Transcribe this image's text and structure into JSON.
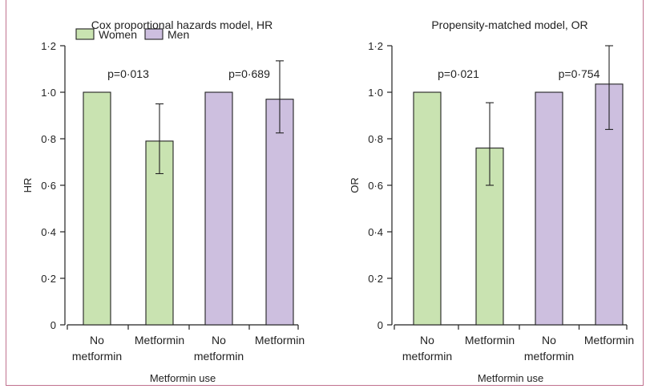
{
  "colors": {
    "women_fill": "#c9e3b1",
    "men_fill": "#cdbfdf",
    "frame": "#c0728f"
  },
  "chart_data": [
    {
      "type": "bar",
      "title": "Cox proportional hazards model, HR",
      "xlabel": "Metformin use",
      "ylabel": "HR",
      "ylim": [
        0,
        1.2
      ],
      "yticks": [
        "0",
        "0·2",
        "0·4",
        "0·6",
        "0·8",
        "1·0",
        "1·2"
      ],
      "categories": [
        {
          "lines": [
            "No",
            "metformin"
          ],
          "group": "Women"
        },
        {
          "lines": [
            "Metformin"
          ],
          "group": "Women"
        },
        {
          "lines": [
            "No",
            "metformin"
          ],
          "group": "Men"
        },
        {
          "lines": [
            "Metformin"
          ],
          "group": "Men"
        }
      ],
      "values": [
        1.0,
        0.79,
        1.0,
        0.97
      ],
      "error_low": [
        1.0,
        0.65,
        1.0,
        0.825
      ],
      "error_high": [
        1.0,
        0.95,
        1.0,
        1.135
      ],
      "legend": [
        {
          "name": "Women",
          "color": "#c9e3b1"
        },
        {
          "name": "Men",
          "color": "#cdbfdf"
        }
      ],
      "legend_position": "top-left",
      "annotations": [
        "p=0·013",
        "p=0·689"
      ]
    },
    {
      "type": "bar",
      "title": "Propensity-matched model, OR",
      "xlabel": "Metformin use",
      "ylabel": "OR",
      "ylim": [
        0,
        1.2
      ],
      "yticks": [
        "0",
        "0·2",
        "0·4",
        "0·6",
        "0·8",
        "1·0",
        "1·2"
      ],
      "categories": [
        {
          "lines": [
            "No",
            "metformin"
          ],
          "group": "Women"
        },
        {
          "lines": [
            "Metformin"
          ],
          "group": "Women"
        },
        {
          "lines": [
            "No",
            "metformin"
          ],
          "group": "Men"
        },
        {
          "lines": [
            "Metformin"
          ],
          "group": "Men"
        }
      ],
      "values": [
        1.0,
        0.76,
        1.0,
        1.035
      ],
      "error_low": [
        1.0,
        0.6,
        1.0,
        0.84
      ],
      "error_high": [
        1.0,
        0.955,
        1.0,
        1.2
      ],
      "annotations": [
        "p=0·021",
        "p=0·754"
      ]
    }
  ]
}
